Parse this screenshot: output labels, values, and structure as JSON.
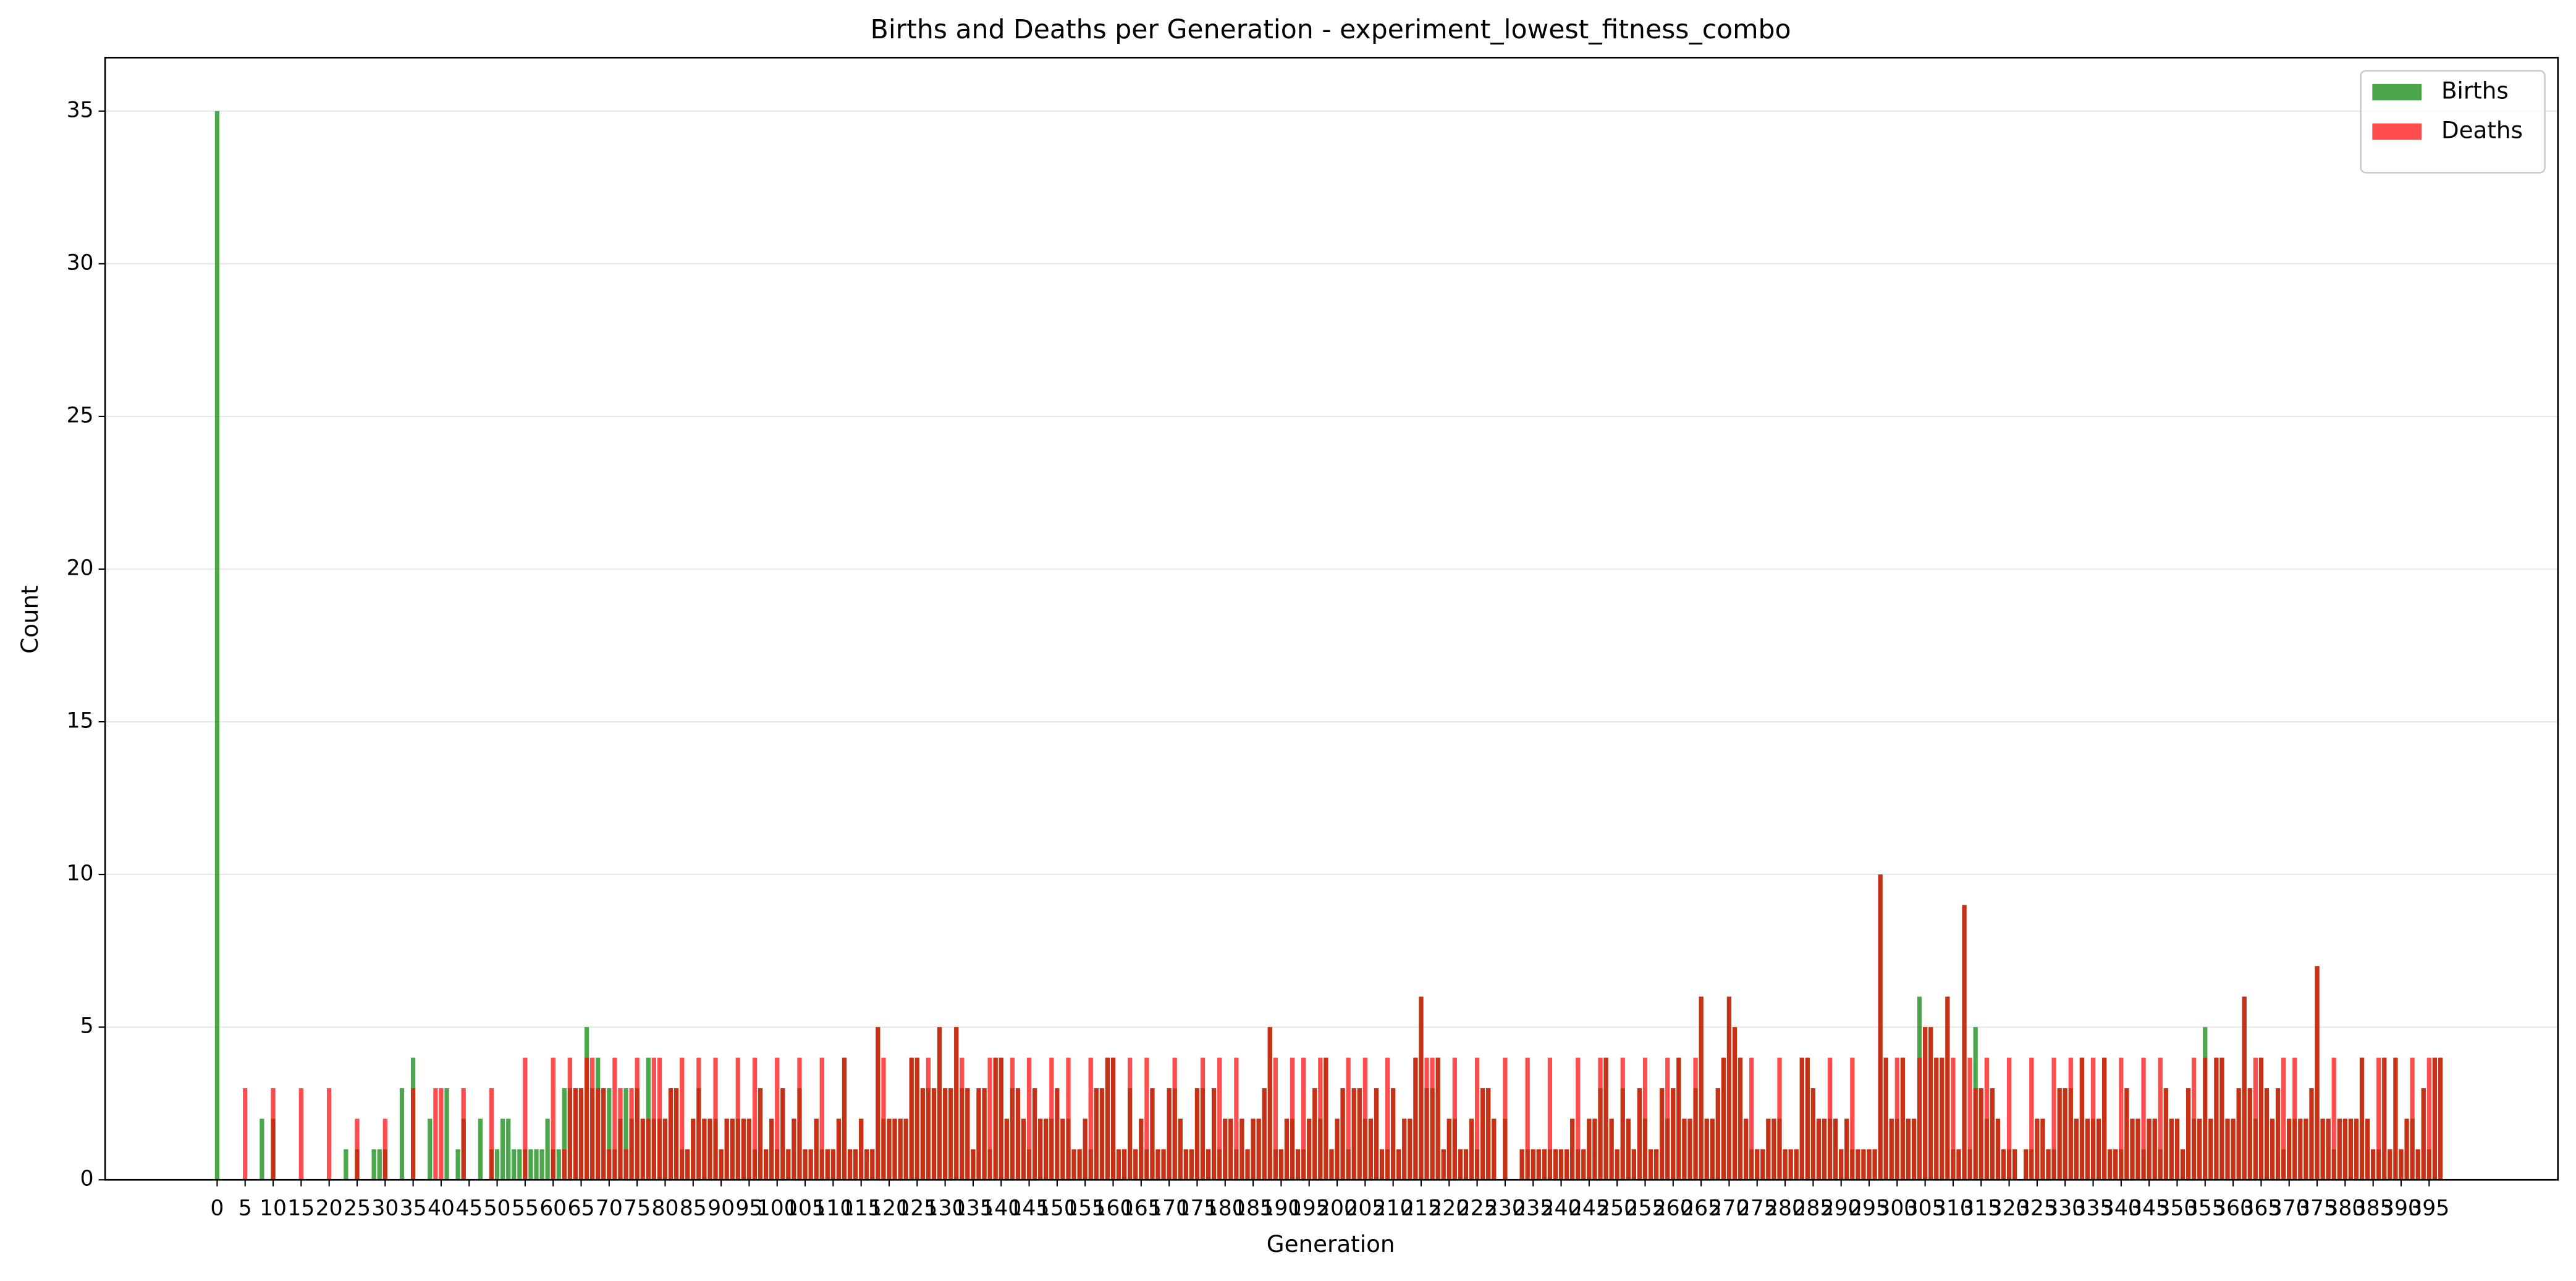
{
  "chart_data": {
    "type": "bar",
    "title": "Births and Deaths per Generation - experiment_lowest_fitness_combo",
    "x_label": "Generation",
    "y_label": "Count",
    "x": [
      0,
      1,
      2,
      3,
      4,
      5,
      6,
      7,
      8,
      9,
      10,
      11,
      12,
      13,
      14,
      15,
      16,
      17,
      18,
      19,
      20,
      21,
      22,
      23,
      24,
      25,
      26,
      27,
      28,
      29,
      30,
      31,
      32,
      33,
      34,
      35,
      36,
      37,
      38,
      39,
      40,
      41,
      42,
      43,
      44,
      45,
      46,
      47,
      48,
      49,
      50,
      51,
      52,
      53,
      54,
      55,
      56,
      57,
      58,
      59,
      60,
      61,
      62,
      63,
      64,
      65,
      66,
      67,
      68,
      69,
      70,
      71,
      72,
      73,
      74,
      75,
      76,
      77,
      78,
      79,
      80,
      81,
      82,
      83,
      84,
      85,
      86,
      87,
      88,
      89,
      90,
      91,
      92,
      93,
      94,
      95,
      96,
      97,
      98,
      99,
      100,
      101,
      102,
      103,
      104,
      105,
      106,
      107,
      108,
      109,
      110,
      111,
      112,
      113,
      114,
      115,
      116,
      117,
      118,
      119,
      120,
      121,
      122,
      123,
      124,
      125,
      126,
      127,
      128,
      129,
      130,
      131,
      132,
      133,
      134,
      135,
      136,
      137,
      138,
      139,
      140,
      141,
      142,
      143,
      144,
      145,
      146,
      147,
      148,
      149,
      150,
      151,
      152,
      153,
      154,
      155,
      156,
      157,
      158,
      159,
      160,
      161,
      162,
      163,
      164,
      165,
      166,
      167,
      168,
      169,
      170,
      171,
      172,
      173,
      174,
      175,
      176,
      177,
      178,
      179,
      180,
      181,
      182,
      183,
      184,
      185,
      186,
      187,
      188,
      189,
      190,
      191,
      192,
      193,
      194,
      195,
      196,
      197,
      198,
      199,
      200,
      201,
      202,
      203,
      204,
      205,
      206,
      207,
      208,
      209,
      210,
      211,
      212,
      213,
      214,
      215,
      216,
      217,
      218,
      219,
      220,
      221,
      222,
      223,
      224,
      225,
      226,
      227,
      228,
      229,
      230,
      231,
      232,
      233,
      234,
      235,
      236,
      237,
      238,
      239,
      240,
      241,
      242,
      243,
      244,
      245,
      246,
      247,
      248,
      249,
      250,
      251,
      252,
      253,
      254,
      255,
      256,
      257,
      258,
      259,
      260,
      261,
      262,
      263,
      264,
      265,
      266,
      267,
      268,
      269,
      270,
      271,
      272,
      273,
      274,
      275,
      276,
      277,
      278,
      279,
      280,
      281,
      282,
      283,
      284,
      285,
      286,
      287,
      288,
      289,
      290,
      291,
      292,
      293,
      294,
      295,
      296,
      297,
      298,
      299,
      300,
      301,
      302,
      303,
      304,
      305,
      306,
      307,
      308,
      309,
      310,
      311,
      312,
      313,
      314,
      315,
      316,
      317,
      318,
      319,
      320,
      321,
      322,
      323,
      324,
      325,
      326,
      327,
      328,
      329,
      330,
      331,
      332,
      333,
      334,
      335,
      336,
      337,
      338,
      339,
      340,
      341,
      342,
      343,
      344,
      345,
      346,
      347,
      348,
      349,
      350,
      351,
      352,
      353,
      354,
      355,
      356,
      357,
      358,
      359,
      360,
      361,
      362,
      363,
      364,
      365,
      366,
      367,
      368,
      369,
      370,
      371,
      372,
      373,
      374,
      375,
      376,
      377,
      378,
      379,
      380,
      381,
      382,
      383,
      384,
      385,
      386,
      387,
      388,
      389,
      390,
      391,
      392,
      393,
      394,
      395,
      396,
      397
    ],
    "series": [
      {
        "name": "Births",
        "color": "green",
        "alpha": 0.7,
        "values": [
          35,
          0,
          0,
          0,
          0,
          0,
          0,
          0,
          2,
          0,
          2,
          0,
          0,
          0,
          0,
          0,
          0,
          0,
          0,
          0,
          0,
          0,
          0,
          1,
          0,
          1,
          0,
          0,
          1,
          1,
          1,
          0,
          0,
          3,
          0,
          4,
          0,
          0,
          2,
          0,
          0,
          3,
          0,
          1,
          2,
          0,
          0,
          2,
          0,
          1,
          1,
          2,
          2,
          1,
          1,
          1,
          1,
          1,
          1,
          2,
          1,
          1,
          3,
          3,
          3,
          3,
          5,
          3,
          4,
          3,
          3,
          1,
          2,
          3,
          2,
          3,
          2,
          4,
          2,
          2,
          2,
          3,
          3,
          1,
          1,
          2,
          3,
          2,
          2,
          2,
          1,
          2,
          2,
          2,
          2,
          2,
          1,
          3,
          1,
          2,
          1,
          3,
          1,
          2,
          3,
          1,
          1,
          2,
          1,
          1,
          1,
          2,
          4,
          1,
          1,
          2,
          1,
          1,
          5,
          2,
          2,
          2,
          2,
          2,
          4,
          4,
          3,
          3,
          3,
          5,
          3,
          3,
          5,
          3,
          3,
          1,
          3,
          3,
          1,
          4,
          4,
          2,
          3,
          3,
          2,
          1,
          3,
          2,
          2,
          2,
          3,
          2,
          2,
          1,
          1,
          2,
          1,
          3,
          3,
          4,
          4,
          1,
          1,
          3,
          1,
          2,
          1,
          3,
          1,
          1,
          3,
          3,
          2,
          1,
          1,
          3,
          3,
          1,
          3,
          1,
          2,
          2,
          1,
          2,
          1,
          2,
          2,
          3,
          5,
          1,
          1,
          2,
          2,
          1,
          1,
          2,
          3,
          2,
          4,
          1,
          2,
          3,
          1,
          3,
          3,
          2,
          2,
          3,
          1,
          1,
          3,
          1,
          2,
          2,
          4,
          6,
          3,
          3,
          4,
          1,
          2,
          2,
          1,
          1,
          2,
          1,
          3,
          3,
          2,
          0,
          2,
          0,
          0,
          1,
          1,
          1,
          1,
          1,
          1,
          1,
          1,
          1,
          2,
          1,
          1,
          2,
          2,
          3,
          4,
          2,
          1,
          3,
          2,
          1,
          3,
          2,
          1,
          1,
          3,
          2,
          3,
          4,
          2,
          2,
          3,
          6,
          2,
          2,
          3,
          4,
          6,
          5,
          4,
          2,
          1,
          1,
          1,
          2,
          2,
          2,
          1,
          1,
          1,
          4,
          4,
          3,
          2,
          2,
          2,
          2,
          1,
          2,
          1,
          1,
          1,
          1,
          1,
          10,
          4,
          2,
          2,
          4,
          2,
          2,
          6,
          5,
          5,
          4,
          4,
          6,
          1,
          1,
          9,
          1,
          5,
          3,
          2,
          3,
          2,
          1,
          1,
          1,
          0,
          1,
          1,
          2,
          2,
          1,
          1,
          3,
          3,
          3,
          2,
          4,
          2,
          2,
          2,
          4,
          1,
          1,
          1,
          3,
          2,
          2,
          1,
          2,
          2,
          1,
          3,
          2,
          2,
          1,
          3,
          2,
          2,
          5,
          2,
          4,
          4,
          2,
          2,
          3,
          6,
          3,
          2,
          4,
          3,
          2,
          3,
          1,
          2,
          2,
          2,
          2,
          3,
          7,
          2,
          2,
          1,
          2,
          2,
          2,
          2,
          4,
          2,
          1,
          1,
          4,
          1,
          4,
          1,
          2,
          2,
          1,
          3,
          1,
          4,
          4
        ]
      },
      {
        "name": "Deaths",
        "color": "red",
        "alpha": 0.7,
        "values": [
          0,
          0,
          0,
          0,
          0,
          3,
          0,
          0,
          0,
          0,
          3,
          0,
          0,
          0,
          0,
          3,
          0,
          0,
          0,
          0,
          3,
          0,
          0,
          0,
          0,
          2,
          0,
          0,
          0,
          0,
          2,
          0,
          0,
          0,
          0,
          3,
          0,
          0,
          0,
          3,
          3,
          0,
          0,
          0,
          3,
          0,
          0,
          0,
          0,
          3,
          0,
          0,
          0,
          0,
          0,
          4,
          0,
          0,
          0,
          0,
          4,
          0,
          1,
          4,
          3,
          3,
          4,
          4,
          3,
          3,
          1,
          4,
          3,
          1,
          3,
          4,
          2,
          2,
          4,
          4,
          2,
          3,
          3,
          4,
          1,
          2,
          4,
          2,
          2,
          4,
          1,
          2,
          2,
          4,
          2,
          2,
          4,
          3,
          1,
          2,
          4,
          3,
          1,
          2,
          4,
          1,
          1,
          2,
          4,
          1,
          1,
          2,
          4,
          1,
          1,
          2,
          1,
          1,
          5,
          4,
          2,
          2,
          2,
          2,
          4,
          4,
          3,
          4,
          3,
          5,
          3,
          3,
          5,
          4,
          3,
          1,
          3,
          3,
          4,
          4,
          4,
          2,
          4,
          3,
          2,
          4,
          3,
          2,
          2,
          4,
          3,
          2,
          4,
          1,
          1,
          2,
          4,
          3,
          3,
          4,
          4,
          1,
          1,
          4,
          1,
          2,
          4,
          3,
          1,
          1,
          3,
          4,
          2,
          1,
          1,
          3,
          4,
          1,
          3,
          4,
          2,
          2,
          4,
          2,
          1,
          2,
          2,
          3,
          5,
          4,
          1,
          2,
          4,
          1,
          4,
          2,
          3,
          4,
          4,
          1,
          2,
          3,
          4,
          3,
          3,
          4,
          2,
          3,
          1,
          4,
          3,
          1,
          2,
          2,
          4,
          6,
          4,
          4,
          4,
          1,
          2,
          4,
          1,
          1,
          2,
          4,
          3,
          3,
          2,
          0,
          4,
          0,
          0,
          1,
          4,
          1,
          1,
          1,
          4,
          1,
          1,
          1,
          2,
          4,
          1,
          2,
          2,
          4,
          4,
          2,
          1,
          4,
          2,
          1,
          3,
          4,
          1,
          1,
          3,
          4,
          3,
          4,
          2,
          2,
          4,
          6,
          2,
          2,
          3,
          4,
          6,
          5,
          4,
          2,
          4,
          1,
          1,
          2,
          2,
          4,
          1,
          1,
          1,
          4,
          4,
          3,
          2,
          2,
          4,
          2,
          1,
          2,
          4,
          1,
          1,
          1,
          1,
          10,
          4,
          2,
          4,
          4,
          2,
          2,
          4,
          5,
          5,
          4,
          4,
          6,
          4,
          1,
          9,
          4,
          3,
          3,
          4,
          3,
          2,
          1,
          4,
          1,
          0,
          1,
          4,
          2,
          2,
          1,
          4,
          3,
          3,
          4,
          2,
          4,
          2,
          4,
          2,
          4,
          1,
          1,
          4,
          3,
          2,
          2,
          4,
          2,
          2,
          4,
          3,
          2,
          2,
          1,
          3,
          4,
          2,
          4,
          2,
          4,
          4,
          2,
          2,
          3,
          6,
          3,
          4,
          4,
          3,
          2,
          3,
          4,
          2,
          4,
          2,
          2,
          3,
          7,
          2,
          2,
          4,
          2,
          2,
          2,
          2,
          4,
          2,
          1,
          4,
          4,
          1,
          4,
          1,
          2,
          4,
          1,
          3,
          4,
          4,
          4
        ]
      }
    ],
    "xlim": [
      -20,
      418
    ],
    "xticks": [
      0,
      5,
      10,
      15,
      20,
      25,
      30,
      35,
      40,
      45,
      50,
      55,
      60,
      65,
      70,
      75,
      80,
      85,
      90,
      95,
      100,
      105,
      110,
      115,
      120,
      125,
      130,
      135,
      140,
      145,
      150,
      155,
      160,
      165,
      170,
      175,
      180,
      185,
      190,
      195,
      200,
      205,
      210,
      215,
      220,
      225,
      230,
      235,
      240,
      245,
      250,
      255,
      260,
      265,
      270,
      275,
      280,
      285,
      290,
      295,
      300,
      305,
      310,
      315,
      320,
      325,
      330,
      335,
      340,
      345,
      350,
      355,
      360,
      365,
      370,
      375,
      380,
      385,
      390,
      395
    ],
    "ylim": [
      0,
      36.75
    ],
    "yticks": [
      0,
      5,
      10,
      15,
      20,
      25,
      30,
      35
    ],
    "grid": true,
    "legend": "upper right"
  }
}
